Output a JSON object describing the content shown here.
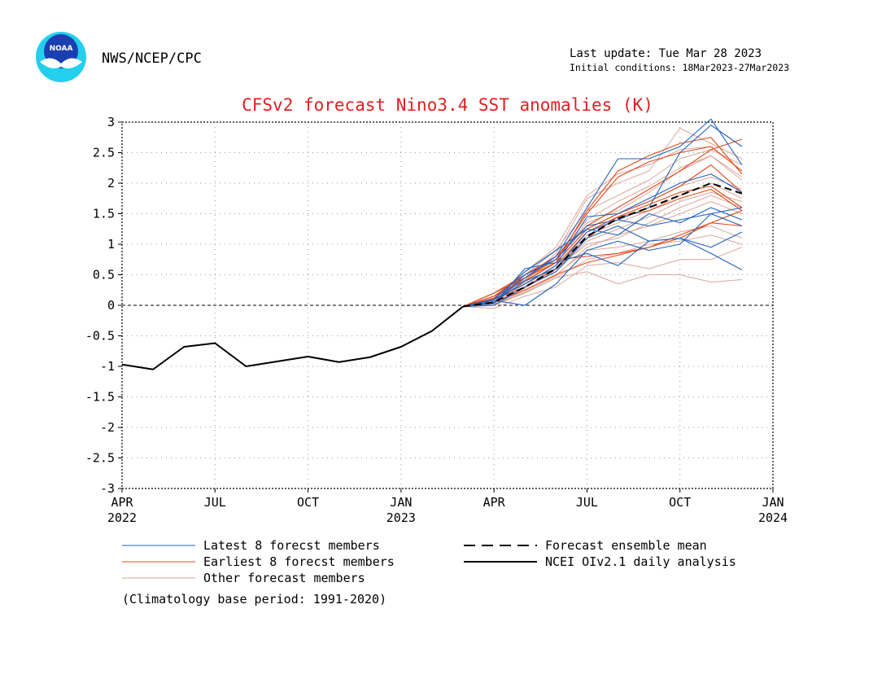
{
  "header": {
    "agency": "NWS/NCEP/CPC",
    "last_update": "Last update: Tue Mar 28 2023",
    "initial_conditions": "Initial conditions: 18Mar2023-27Mar2023",
    "logo_text": "NOAA"
  },
  "colors": {
    "title": "#e02020",
    "latest": "#2060c0",
    "earliest": "#e04818",
    "other": "#d8a89a",
    "mean": "#000000",
    "analysis": "#000000",
    "logo_blue": "#1a3fb0",
    "logo_cyan": "#22d0ee"
  },
  "chart_data": {
    "type": "line",
    "title": "CFSv2 forecast Nino3.4 SST anomalies (K)",
    "ylim": [
      -3,
      3
    ],
    "yticks": [
      "3",
      "2.5",
      "2",
      "1.5",
      "1",
      "0.5",
      "0",
      "-0.5",
      "-1",
      "-1.5",
      "-2",
      "-2.5",
      "-3"
    ],
    "xlim": [
      "2022-04",
      "2024-01"
    ],
    "xticks": [
      {
        "month": "2022-04",
        "label": "APR",
        "year": "2022"
      },
      {
        "month": "2022-07",
        "label": "JUL",
        "year": ""
      },
      {
        "month": "2022-10",
        "label": "OCT",
        "year": ""
      },
      {
        "month": "2023-01",
        "label": "JAN",
        "year": "2023"
      },
      {
        "month": "2023-04",
        "label": "APR",
        "year": ""
      },
      {
        "month": "2023-07",
        "label": "JUL",
        "year": ""
      },
      {
        "month": "2023-10",
        "label": "OCT",
        "year": ""
      },
      {
        "month": "2024-01",
        "label": "JAN",
        "year": "2024"
      }
    ],
    "grid": "dotted",
    "forecast_months": [
      "2023-03",
      "2023-04",
      "2023-05",
      "2023-06",
      "2023-07",
      "2023-08",
      "2023-09",
      "2023-10",
      "2023-11",
      "2023-12"
    ],
    "observed": {
      "name": "NCEI OIv2.1 daily analysis",
      "months": [
        "2022-04",
        "2022-05",
        "2022-06",
        "2022-07",
        "2022-08",
        "2022-09",
        "2022-10",
        "2022-11",
        "2022-12",
        "2023-01",
        "2023-02",
        "2023-03"
      ],
      "values": [
        -0.97,
        -1.05,
        -0.68,
        -0.62,
        -1.0,
        -0.92,
        -0.84,
        -0.93,
        -0.85,
        -0.68,
        -0.42,
        -0.02
      ]
    },
    "ensemble_mean": {
      "name": "Forecast ensemble mean",
      "values": [
        -0.02,
        0.05,
        0.3,
        0.6,
        1.13,
        1.42,
        1.6,
        1.8,
        2.0,
        1.83
      ]
    },
    "latest_members": [
      [
        -0.02,
        0.05,
        0.45,
        0.8,
        1.6,
        2.4,
        2.4,
        2.6,
        3.05,
        2.3
      ],
      [
        -0.02,
        0.1,
        0.55,
        0.9,
        1.25,
        1.15,
        1.5,
        1.35,
        1.6,
        1.4
      ],
      [
        -0.02,
        0.0,
        0.3,
        0.55,
        1.1,
        1.3,
        1.05,
        1.1,
        0.85,
        0.58
      ],
      [
        -0.02,
        0.03,
        0.6,
        0.7,
        0.85,
        0.65,
        1.05,
        1.1,
        0.95,
        1.2
      ],
      [
        -0.02,
        0.05,
        0.4,
        0.6,
        1.2,
        1.4,
        1.6,
        2.5,
        2.95,
        2.6
      ],
      [
        -0.02,
        0.08,
        0.0,
        0.35,
        0.9,
        1.05,
        0.9,
        1.0,
        1.5,
        1.3
      ],
      [
        -0.02,
        0.05,
        0.5,
        0.75,
        1.3,
        1.4,
        1.3,
        1.4,
        1.5,
        1.6
      ],
      [
        -0.02,
        0.1,
        0.35,
        0.65,
        1.45,
        1.5,
        1.75,
        2.0,
        2.15,
        1.85
      ]
    ],
    "earliest_members": [
      [
        -0.02,
        0.2,
        0.45,
        0.75,
        1.5,
        2.1,
        2.35,
        2.5,
        2.6,
        2.2
      ],
      [
        -0.02,
        0.15,
        0.4,
        0.7,
        1.55,
        2.2,
        2.45,
        2.65,
        2.75,
        2.15
      ],
      [
        -0.02,
        0.15,
        0.5,
        0.8,
        1.3,
        1.6,
        1.9,
        2.2,
        2.55,
        2.72
      ],
      [
        -0.02,
        0.1,
        0.3,
        0.6,
        1.1,
        1.45,
        1.55,
        1.75,
        1.9,
        1.55
      ],
      [
        -0.02,
        0.2,
        0.5,
        0.75,
        0.8,
        0.85,
        0.95,
        1.15,
        1.35,
        1.55
      ],
      [
        -0.02,
        0.05,
        0.25,
        0.5,
        0.7,
        0.82,
        0.95,
        1.1,
        1.35,
        1.3
      ],
      [
        -0.02,
        0.12,
        0.45,
        0.7,
        1.25,
        1.5,
        1.7,
        1.95,
        2.3,
        1.85
      ],
      [
        -0.02,
        0.1,
        0.35,
        0.65,
        1.2,
        1.45,
        1.65,
        1.85,
        1.95,
        1.6
      ]
    ],
    "other_members": [
      [
        -0.02,
        0.0,
        0.2,
        0.45,
        0.55,
        0.35,
        0.5,
        0.5,
        0.38,
        0.42
      ],
      [
        -0.02,
        -0.05,
        0.15,
        0.3,
        0.65,
        0.7,
        0.6,
        0.75,
        0.75,
        0.95
      ],
      [
        -0.02,
        0.05,
        0.4,
        0.85,
        1.75,
        2.0,
        2.2,
        2.9,
        2.65,
        2.4
      ],
      [
        -0.02,
        0.08,
        0.45,
        0.75,
        1.35,
        1.55,
        1.85,
        2.2,
        2.45,
        2.1
      ],
      [
        -0.02,
        0.03,
        0.35,
        0.6,
        1.0,
        1.1,
        1.35,
        1.6,
        1.8,
        1.6
      ],
      [
        -0.02,
        0.1,
        0.5,
        0.9,
        1.55,
        1.8,
        2.05,
        2.4,
        2.55,
        2.3
      ],
      [
        -0.02,
        0.0,
        0.25,
        0.5,
        0.9,
        0.95,
        1.05,
        1.2,
        1.3,
        1.1
      ],
      [
        -0.02,
        0.06,
        0.3,
        0.55,
        1.05,
        1.25,
        1.45,
        1.7,
        1.85,
        1.7
      ],
      [
        -0.02,
        0.12,
        0.55,
        0.95,
        1.8,
        2.15,
        2.3,
        2.55,
        2.6,
        2.2
      ],
      [
        -0.02,
        0.02,
        0.2,
        0.45,
        0.75,
        0.85,
        1.0,
        1.05,
        1.15,
        1.0
      ],
      [
        -0.02,
        0.08,
        0.38,
        0.7,
        1.25,
        1.5,
        1.7,
        1.95,
        2.1,
        1.9
      ],
      [
        -0.02,
        0.04,
        0.28,
        0.58,
        1.15,
        1.35,
        1.55,
        1.8,
        2.0,
        1.75
      ],
      [
        -0.02,
        0.1,
        0.42,
        0.8,
        1.4,
        1.7,
        1.95,
        2.25,
        2.45,
        2.05
      ],
      [
        -0.02,
        0.0,
        0.22,
        0.48,
        0.95,
        1.15,
        1.3,
        1.5,
        1.7,
        1.5
      ]
    ],
    "legend": [
      {
        "key": "latest",
        "label": "Latest 8 forecst members",
        "style": "thin"
      },
      {
        "key": "earliest",
        "label": "Earliest 8 forecst members",
        "style": "thin"
      },
      {
        "key": "other",
        "label": "Other forecast members",
        "style": "thin"
      },
      {
        "key": "mean",
        "label": "Forecast ensemble mean",
        "style": "dashed"
      },
      {
        "key": "analysis",
        "label": "NCEI OIv2.1 daily analysis",
        "style": "solid"
      }
    ],
    "footnote": "(Climatology base period: 1991-2020)"
  }
}
